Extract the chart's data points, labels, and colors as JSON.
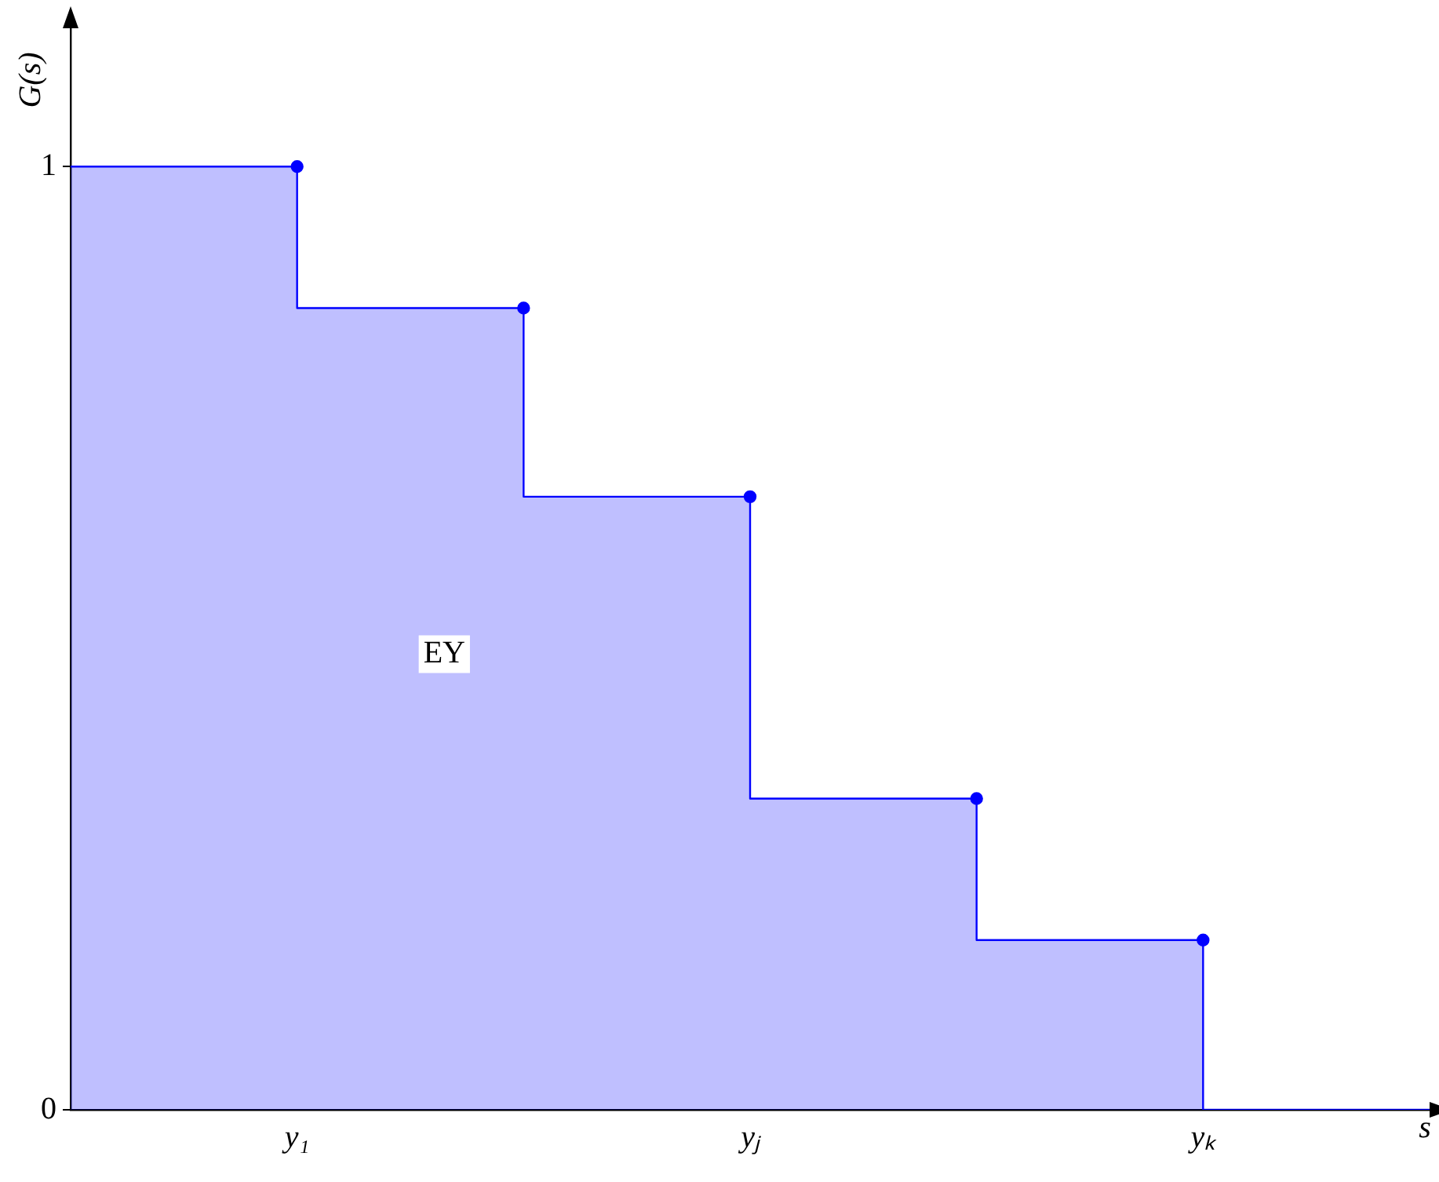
{
  "chart_data": {
    "type": "step",
    "xlabel": "s",
    "ylabel": "G(s)",
    "categories": [
      null,
      "y₁",
      null,
      "yⱼ",
      null,
      "yₖ",
      null
    ],
    "series": [
      {
        "color": "#0000ff",
        "values": [
          1,
          1,
          0.85,
          0.65,
          0.33,
          0.18,
          0
        ]
      }
    ],
    "ylim": [
      0,
      1.15
    ],
    "yticks": [
      0,
      1
    ],
    "marker": "circle",
    "grid": false,
    "legend": false,
    "annotations": [
      "EY"
    ]
  }
}
